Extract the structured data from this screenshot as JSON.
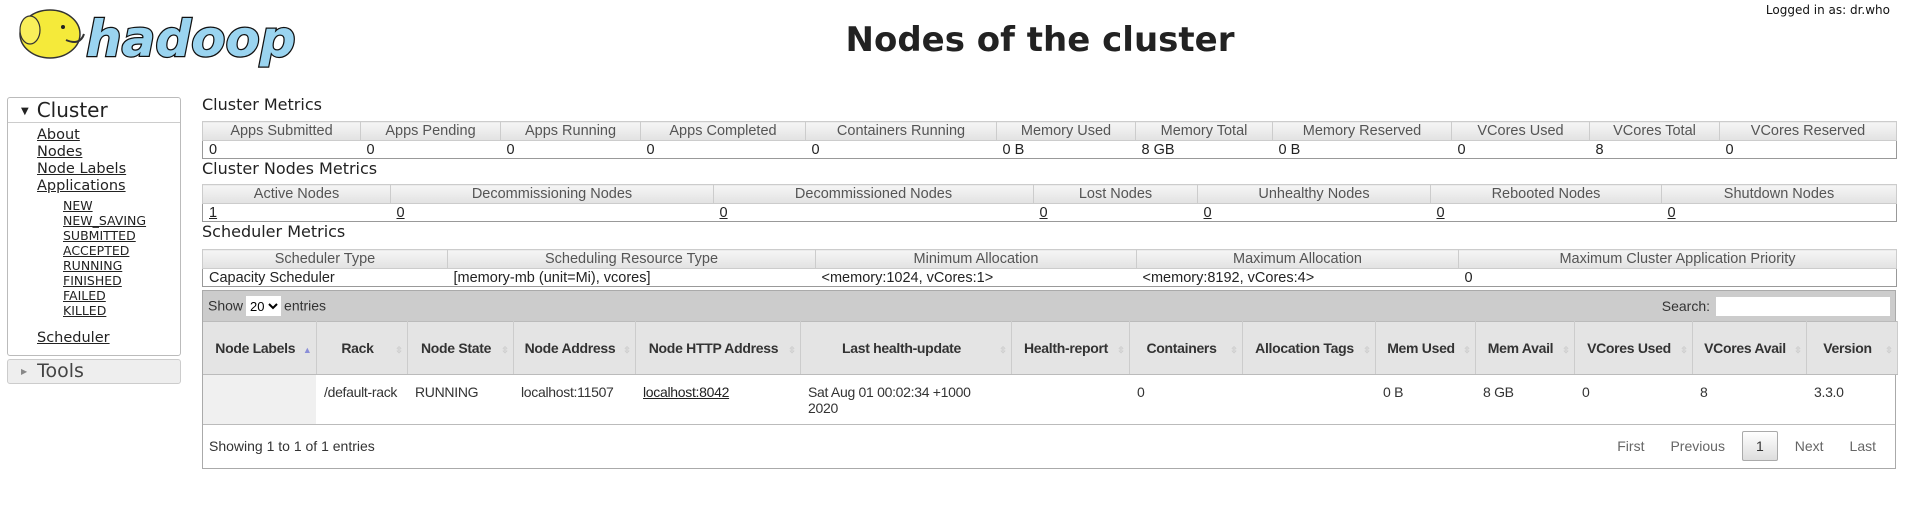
{
  "header": {
    "logo_text": "hadoop",
    "title": "Nodes of the cluster",
    "logged_in": "Logged in as: dr.who"
  },
  "sidebar": {
    "cluster_label": "Cluster",
    "links": [
      "About",
      "Nodes",
      "Node Labels",
      "Applications"
    ],
    "app_states": [
      "NEW",
      "NEW_SAVING",
      "SUBMITTED",
      "ACCEPTED",
      "RUNNING",
      "FINISHED",
      "FAILED",
      "KILLED"
    ],
    "scheduler": "Scheduler",
    "tools_label": "Tools"
  },
  "cluster_metrics": {
    "title": "Cluster Metrics",
    "headers": [
      "Apps Submitted",
      "Apps Pending",
      "Apps Running",
      "Apps Completed",
      "Containers Running",
      "Memory Used",
      "Memory Total",
      "Memory Reserved",
      "VCores Used",
      "VCores Total",
      "VCores Reserved"
    ],
    "values": [
      "0",
      "0",
      "0",
      "0",
      "0",
      "0 B",
      "8 GB",
      "0 B",
      "0",
      "8",
      "0"
    ]
  },
  "nodes_metrics": {
    "title": "Cluster Nodes Metrics",
    "headers": [
      "Active Nodes",
      "Decommissioning Nodes",
      "Decommissioned Nodes",
      "Lost Nodes",
      "Unhealthy Nodes",
      "Rebooted Nodes",
      "Shutdown Nodes"
    ],
    "values": [
      "1",
      "0",
      "0",
      "0",
      "0",
      "0",
      "0"
    ]
  },
  "scheduler_metrics": {
    "title": "Scheduler Metrics",
    "headers": [
      "Scheduler Type",
      "Scheduling Resource Type",
      "Minimum Allocation",
      "Maximum Allocation",
      "Maximum Cluster Application Priority"
    ],
    "values": [
      "Capacity Scheduler",
      "[memory-mb (unit=Mi), vcores]",
      "<memory:1024, vCores:1>",
      "<memory:8192, vCores:4>",
      "0"
    ]
  },
  "nodes_table": {
    "show": "Show",
    "entries": "entries",
    "page_size": "20",
    "search_label": "Search:",
    "search_value": "",
    "headers": [
      "Node Labels",
      "Rack",
      "Node State",
      "Node Address",
      "Node HTTP Address",
      "Last health-update",
      "Health-report",
      "Containers",
      "Allocation Tags",
      "Mem Used",
      "Mem Avail",
      "VCores Used",
      "VCores Avail",
      "Version"
    ],
    "rows": [
      [
        "",
        "/default-rack",
        "RUNNING",
        "localhost:11507",
        "localhost:8042",
        "Sat Aug 01 00:02:34 +1000 2020",
        "",
        "0",
        "",
        "0 B",
        "8 GB",
        "0",
        "8",
        "3.3.0"
      ]
    ],
    "info": "Showing 1 to 1 of 1 entries",
    "pager": {
      "first": "First",
      "previous": "Previous",
      "current": "1",
      "next": "Next",
      "last": "Last"
    }
  }
}
